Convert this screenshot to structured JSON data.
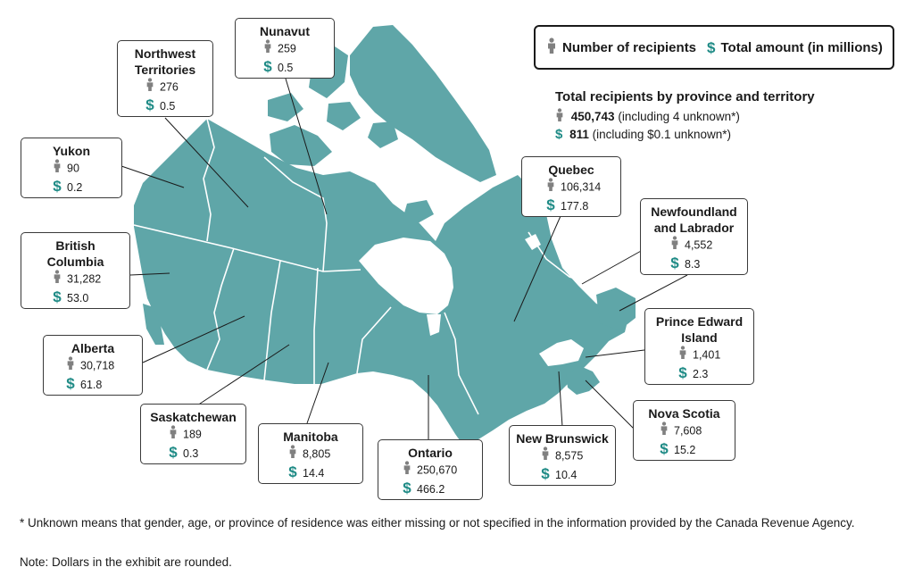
{
  "legend": {
    "recipients": "Number of recipients",
    "amount": "Total amount (in millions)"
  },
  "totals": {
    "title": "Total recipients by province and territory",
    "recipients_bold": "450,743",
    "recipients_rest": " (including 4 unknown*)",
    "amount_bold": "811",
    "amount_rest": " (including $0.1 unknown*)"
  },
  "regions": [
    {
      "name": "Nunavut",
      "recipients": "259",
      "amount": "0.5"
    },
    {
      "name": "Northwest\nTerritories",
      "recipients": "276",
      "amount": "0.5"
    },
    {
      "name": "Yukon",
      "recipients": "90",
      "amount": "0.2"
    },
    {
      "name": "British\nColumbia",
      "recipients": "31,282",
      "amount": "53.0"
    },
    {
      "name": "Alberta",
      "recipients": "30,718",
      "amount": "61.8"
    },
    {
      "name": "Saskatchewan",
      "recipients": "189",
      "amount": "0.3"
    },
    {
      "name": "Manitoba",
      "recipients": "8,805",
      "amount": "14.4"
    },
    {
      "name": "Ontario",
      "recipients": "250,670",
      "amount": "466.2"
    },
    {
      "name": "Quebec",
      "recipients": "106,314",
      "amount": "177.8"
    },
    {
      "name": "Newfoundland\nand Labrador",
      "recipients": "4,552",
      "amount": "8.3"
    },
    {
      "name": "Prince Edward\nIsland",
      "recipients": "1,401",
      "amount": "2.3"
    },
    {
      "name": "New Brunswick",
      "recipients": "8,575",
      "amount": "10.4"
    },
    {
      "name": "Nova Scotia",
      "recipients": "7,608",
      "amount": "15.2"
    }
  ],
  "footnote": "* Unknown means that gender, age, or province of residence was either missing or not specified in the information provided by the Canada Revenue Agency.",
  "note": "Note: Dollars in the exhibit are rounded.",
  "colors": {
    "land": "#5fa6a8",
    "border_lines": "#ffffff",
    "dollar": "#1f8b86",
    "person": "#808080",
    "box_border": "#3a3a3a"
  },
  "icons": {
    "recipient": "person-icon",
    "amount": "dollar-icon"
  }
}
